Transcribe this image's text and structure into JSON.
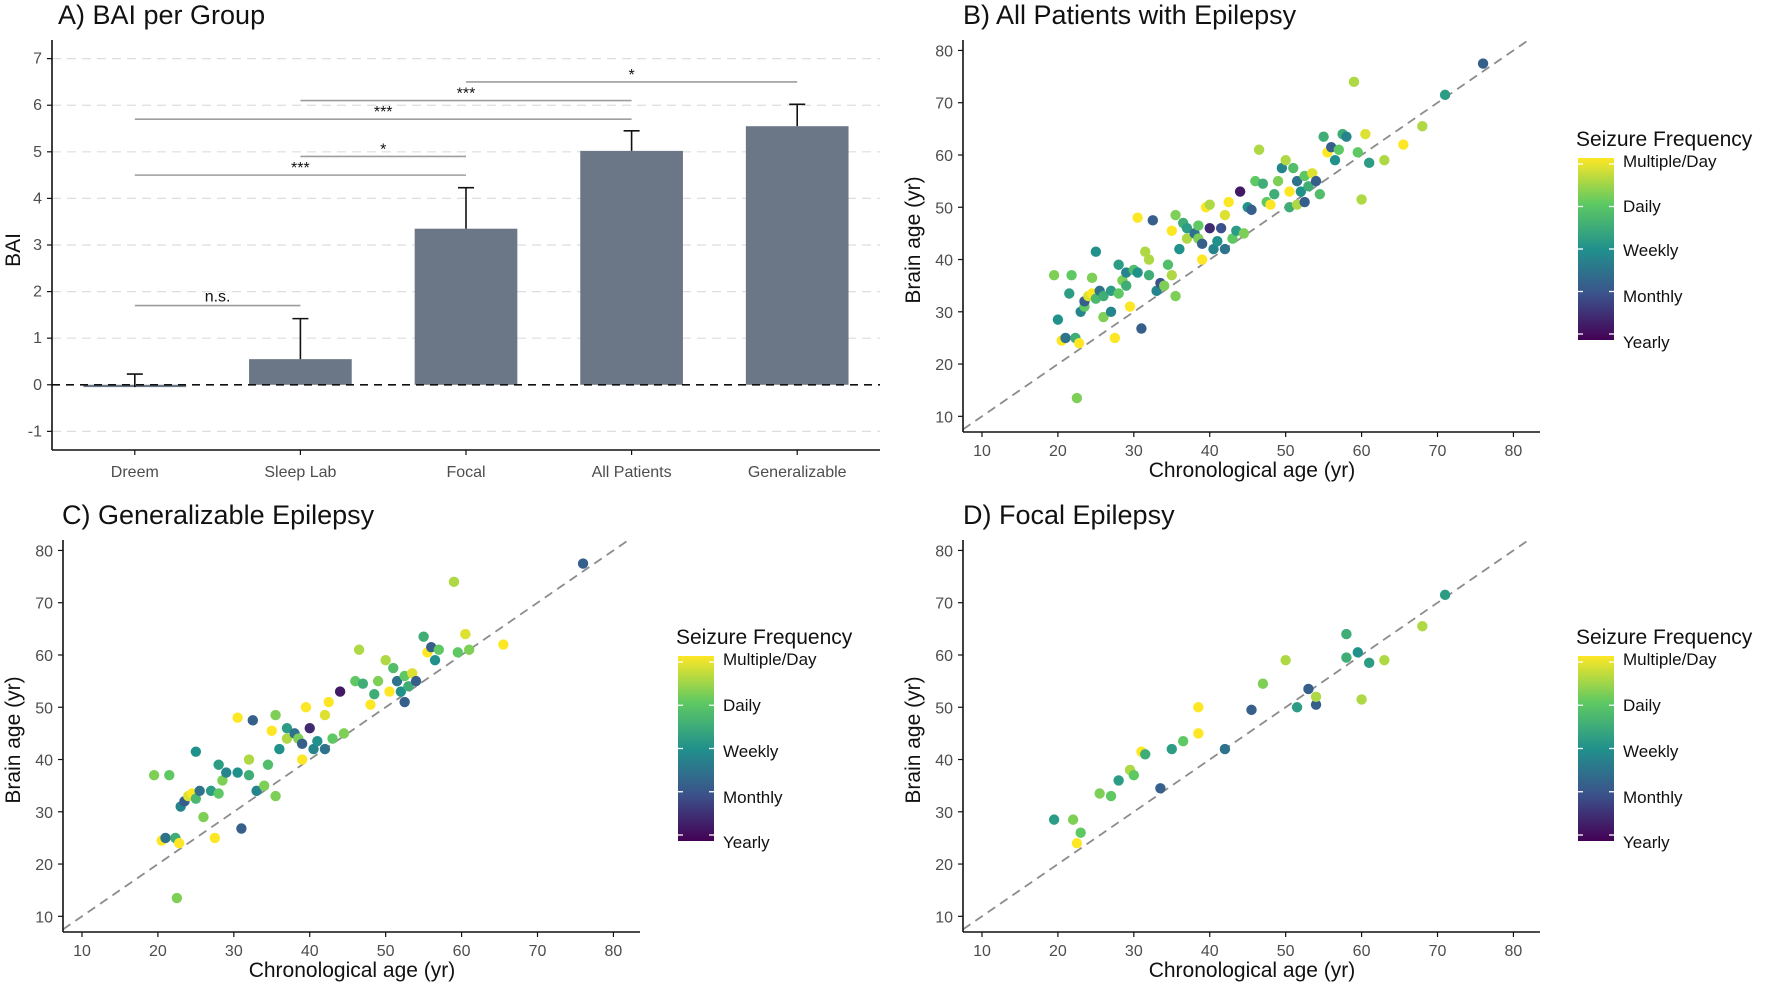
{
  "colors": {
    "bar": "#6b7786",
    "axis": "#111111",
    "grid": "#dedede",
    "diagonal": "#8c8c8c",
    "bracket": "#9e9e9e",
    "viridis": [
      "#440154",
      "#3b528b",
      "#21918c",
      "#5ec962",
      "#fde725"
    ]
  },
  "chart_data": [
    {
      "panel": "A",
      "type": "bar",
      "title": "A) BAI per Group",
      "xlabel": "",
      "ylabel": "BAI",
      "ylim": [
        -1.4,
        7.4
      ],
      "yticks": [
        -1,
        0,
        1,
        2,
        3,
        4,
        5,
        6,
        7
      ],
      "categories": [
        "Dreem",
        "Sleep Lab",
        "Focal",
        "All Patients",
        "Generalizable"
      ],
      "values": [
        -0.05,
        0.55,
        3.35,
        5.02,
        5.55
      ],
      "errors": [
        0.28,
        0.87,
        0.88,
        0.43,
        0.47
      ],
      "reference_line": 0,
      "grid": "horizontal dashed",
      "comparisons": [
        {
          "from": "Dreem",
          "to": "Sleep Lab",
          "y": 1.7,
          "label": "n.s."
        },
        {
          "from": "Dreem",
          "to": "Focal",
          "y": 4.5,
          "label": "***"
        },
        {
          "from": "Sleep Lab",
          "to": "Focal",
          "y": 4.9,
          "label": "*"
        },
        {
          "from": "Dreem",
          "to": "All Patients",
          "y": 5.7,
          "label": "***"
        },
        {
          "from": "Sleep Lab",
          "to": "All Patients",
          "y": 6.1,
          "label": "***"
        },
        {
          "from": "Focal",
          "to": "Generalizable",
          "y": 6.5,
          "label": "*"
        }
      ]
    },
    {
      "panel": "B",
      "type": "scatter",
      "title": "B) All Patients with Epilepsy",
      "xlabel": "Chronological age (yr)",
      "ylabel": "Brain age (yr)",
      "xlim": [
        7.5,
        83.5
      ],
      "ylim": [
        7,
        82
      ],
      "xticks": [
        10,
        20,
        30,
        40,
        50,
        60,
        70,
        80
      ],
      "yticks": [
        10,
        20,
        30,
        40,
        50,
        60,
        70,
        80
      ],
      "identity_line": true,
      "legend": {
        "title": "Seizure Frequency",
        "labels": [
          "Multiple/Day",
          "Daily",
          "Weekly",
          "Monthly",
          "Yearly"
        ],
        "position": "right"
      },
      "points": [
        [
          19.5,
          37,
          3.2
        ],
        [
          20,
          28.5,
          2
        ],
        [
          20.5,
          24.5,
          4
        ],
        [
          21,
          25,
          1.5
        ],
        [
          21.5,
          33.5,
          2.2
        ],
        [
          21.8,
          37,
          3
        ],
        [
          22.3,
          25,
          2.5
        ],
        [
          22.5,
          13.5,
          3.2
        ],
        [
          22.8,
          24,
          4
        ],
        [
          23,
          30,
          1.8
        ],
        [
          23.5,
          31,
          3
        ],
        [
          23.5,
          32,
          1.2
        ],
        [
          24,
          33,
          3.8
        ],
        [
          24.5,
          33.5,
          4
        ],
        [
          24.5,
          36.5,
          3.2
        ],
        [
          25,
          32.5,
          2.7
        ],
        [
          25,
          41.5,
          2
        ],
        [
          25.5,
          34,
          1.5
        ],
        [
          26,
          33,
          2.5
        ],
        [
          26,
          29,
          3.2
        ],
        [
          27,
          34,
          2.2
        ],
        [
          27,
          30,
          1.8
        ],
        [
          27.5,
          25,
          4
        ],
        [
          28,
          33.5,
          3
        ],
        [
          28,
          39,
          2.2
        ],
        [
          28.5,
          36,
          3.2
        ],
        [
          29,
          35,
          2.5
        ],
        [
          29,
          37.5,
          1.8
        ],
        [
          29.5,
          31,
          4
        ],
        [
          30,
          38,
          2.8
        ],
        [
          30.5,
          37.5,
          2
        ],
        [
          30.5,
          48,
          4
        ],
        [
          31,
          26.8,
          1.2
        ],
        [
          31.5,
          41.5,
          3.5
        ],
        [
          32,
          37,
          2.5
        ],
        [
          32,
          40,
          3.5
        ],
        [
          32.5,
          47.5,
          1.2
        ],
        [
          33,
          34,
          1.8
        ],
        [
          33.5,
          35.5,
          1
        ],
        [
          34,
          35,
          3.2
        ],
        [
          34.5,
          39,
          2.8
        ],
        [
          35,
          37,
          3.5
        ],
        [
          35,
          45.5,
          4
        ],
        [
          35.5,
          33,
          3.2
        ],
        [
          35.5,
          48.5,
          3.2
        ],
        [
          36,
          42,
          2
        ],
        [
          36.5,
          47,
          2.5
        ],
        [
          37,
          44,
          3.5
        ],
        [
          37,
          46,
          2.2
        ],
        [
          38,
          45,
          1.5
        ],
        [
          38.5,
          46.5,
          3
        ],
        [
          38.5,
          44,
          3.2
        ],
        [
          39,
          40,
          4
        ],
        [
          39,
          43,
          1.2
        ],
        [
          39.5,
          50,
          4
        ],
        [
          40,
          46,
          0.5
        ],
        [
          40,
          50.5,
          3.5
        ],
        [
          40.5,
          42,
          1.8
        ],
        [
          41,
          43.5,
          2
        ],
        [
          41.5,
          46,
          1
        ],
        [
          42,
          48.5,
          3.8
        ],
        [
          42,
          42,
          1.5
        ],
        [
          42.5,
          51,
          4
        ],
        [
          43,
          44,
          3
        ],
        [
          43.5,
          45.5,
          2.2
        ],
        [
          44,
          53,
          0.3
        ],
        [
          44.5,
          45,
          3.2
        ],
        [
          45,
          50,
          2
        ],
        [
          45.5,
          49.5,
          1.2
        ],
        [
          46,
          55,
          3
        ],
        [
          46.5,
          61,
          3.5
        ],
        [
          47,
          54.5,
          2.5
        ],
        [
          47.5,
          51,
          3
        ],
        [
          48,
          50.5,
          4
        ],
        [
          48.5,
          52.5,
          2.5
        ],
        [
          49,
          55,
          3.2
        ],
        [
          49.5,
          57.5,
          1.8
        ],
        [
          50,
          59,
          3.5
        ],
        [
          50.5,
          50,
          2.5
        ],
        [
          50.5,
          53,
          4
        ],
        [
          51,
          57.5,
          2.8
        ],
        [
          51.5,
          55,
          1.5
        ],
        [
          51.5,
          50.5,
          3.5
        ],
        [
          52,
          53,
          2
        ],
        [
          52.5,
          56,
          3
        ],
        [
          52.5,
          51,
          1.2
        ],
        [
          53,
          54,
          2.5
        ],
        [
          53.5,
          56.5,
          3.8
        ],
        [
          54,
          55,
          1.2
        ],
        [
          54.5,
          52.5,
          2.8
        ],
        [
          55,
          63.5,
          2.5
        ],
        [
          55.5,
          60.5,
          4
        ],
        [
          56,
          61.5,
          1.2
        ],
        [
          56.5,
          59,
          2
        ],
        [
          57,
          61,
          3
        ],
        [
          57.5,
          64,
          2.5
        ],
        [
          58,
          63.5,
          1.8
        ],
        [
          59,
          74,
          3.5
        ],
        [
          59.5,
          60.5,
          3
        ],
        [
          60,
          51.5,
          3.5
        ],
        [
          60.5,
          64,
          3.8
        ],
        [
          61,
          58.5,
          2.2
        ],
        [
          63,
          59,
          3.5
        ],
        [
          65.5,
          62,
          4
        ],
        [
          68,
          65.5,
          3.5
        ],
        [
          71,
          71.5,
          2.2
        ],
        [
          76,
          77.5,
          1.2
        ]
      ]
    },
    {
      "panel": "C",
      "type": "scatter",
      "title": "C) Generalizable Epilepsy",
      "xlabel": "Chronological age (yr)",
      "ylabel": "Brain age (yr)",
      "xlim": [
        7.5,
        83.5
      ],
      "ylim": [
        7,
        82
      ],
      "xticks": [
        10,
        20,
        30,
        40,
        50,
        60,
        70,
        80
      ],
      "yticks": [
        10,
        20,
        30,
        40,
        50,
        60,
        70,
        80
      ],
      "identity_line": true,
      "legend": {
        "title": "Seizure Frequency",
        "labels": [
          "Multiple/Day",
          "Daily",
          "Weekly",
          "Monthly",
          "Yearly"
        ],
        "position": "right"
      },
      "points": [
        [
          19.5,
          37,
          3.2
        ],
        [
          20.5,
          24.5,
          4
        ],
        [
          21,
          25,
          1.5
        ],
        [
          21.5,
          37,
          3
        ],
        [
          22.3,
          25,
          2.5
        ],
        [
          22.5,
          13.5,
          3.2
        ],
        [
          22.8,
          24,
          4
        ],
        [
          23,
          31,
          1.8
        ],
        [
          23.5,
          32,
          1.2
        ],
        [
          24,
          33,
          3.8
        ],
        [
          24.5,
          33.5,
          4
        ],
        [
          25,
          32.5,
          2.7
        ],
        [
          25,
          41.5,
          2
        ],
        [
          25.5,
          34,
          1.5
        ],
        [
          26,
          29,
          3.2
        ],
        [
          27,
          34,
          2.2
        ],
        [
          27.5,
          25,
          4
        ],
        [
          28,
          33.5,
          3
        ],
        [
          28,
          39,
          2.2
        ],
        [
          28.5,
          36,
          3.2
        ],
        [
          29,
          37.5,
          1.8
        ],
        [
          30.5,
          37.5,
          2
        ],
        [
          30.5,
          48,
          4
        ],
        [
          31,
          26.8,
          1.2
        ],
        [
          32,
          37,
          2.5
        ],
        [
          32,
          40,
          3.5
        ],
        [
          32.5,
          47.5,
          1.2
        ],
        [
          33,
          34,
          1.8
        ],
        [
          34,
          35,
          3.2
        ],
        [
          34.5,
          39,
          2.8
        ],
        [
          35,
          45.5,
          4
        ],
        [
          35.5,
          33,
          3.2
        ],
        [
          35.5,
          48.5,
          3.2
        ],
        [
          36,
          42,
          2
        ],
        [
          37,
          44,
          3.5
        ],
        [
          37,
          46,
          2.2
        ],
        [
          38,
          45,
          1.5
        ],
        [
          38.5,
          44,
          3.2
        ],
        [
          39,
          40,
          4
        ],
        [
          39,
          43,
          1.2
        ],
        [
          39.5,
          50,
          4
        ],
        [
          40,
          46,
          0.5
        ],
        [
          40.5,
          42,
          1.8
        ],
        [
          41,
          43.5,
          2
        ],
        [
          42,
          48.5,
          3.8
        ],
        [
          42,
          42,
          1.5
        ],
        [
          42.5,
          51,
          4
        ],
        [
          43,
          44,
          3
        ],
        [
          44,
          53,
          0.3
        ],
        [
          44.5,
          45,
          3.2
        ],
        [
          46,
          55,
          3
        ],
        [
          46.5,
          61,
          3.5
        ],
        [
          47,
          54.5,
          2.5
        ],
        [
          48,
          50.5,
          4
        ],
        [
          48.5,
          52.5,
          2.5
        ],
        [
          49,
          55,
          3.2
        ],
        [
          50,
          59,
          3.5
        ],
        [
          50.5,
          53,
          4
        ],
        [
          51,
          57.5,
          2.8
        ],
        [
          51.5,
          55,
          1.5
        ],
        [
          52,
          53,
          2
        ],
        [
          52.5,
          56,
          3
        ],
        [
          52.5,
          51,
          1.2
        ],
        [
          53,
          54,
          2.5
        ],
        [
          53.5,
          56.5,
          3.8
        ],
        [
          54,
          55,
          1.2
        ],
        [
          55,
          63.5,
          2.5
        ],
        [
          55.5,
          60.5,
          4
        ],
        [
          56,
          61.5,
          1.2
        ],
        [
          56.5,
          59,
          2
        ],
        [
          57,
          61,
          3
        ],
        [
          59,
          74,
          3.5
        ],
        [
          59.5,
          60.5,
          3
        ],
        [
          60.5,
          64,
          3.8
        ],
        [
          61,
          61,
          3.2
        ],
        [
          65.5,
          62,
          4
        ],
        [
          76,
          77.5,
          1.2
        ]
      ]
    },
    {
      "panel": "D",
      "type": "scatter",
      "title": "D) Focal Epilepsy",
      "xlabel": "Chronological age (yr)",
      "ylabel": "Brain age (yr)",
      "xlim": [
        7.5,
        83.5
      ],
      "ylim": [
        7,
        82
      ],
      "xticks": [
        10,
        20,
        30,
        40,
        50,
        60,
        70,
        80
      ],
      "yticks": [
        10,
        20,
        30,
        40,
        50,
        60,
        70,
        80
      ],
      "identity_line": true,
      "legend": {
        "title": "Seizure Frequency",
        "labels": [
          "Multiple/Day",
          "Daily",
          "Weekly",
          "Monthly",
          "Yearly"
        ],
        "position": "right"
      },
      "points": [
        [
          19.5,
          28.5,
          2.2
        ],
        [
          22,
          28.5,
          3.2
        ],
        [
          22.5,
          24,
          4
        ],
        [
          23,
          26,
          3
        ],
        [
          25.5,
          33.5,
          3.2
        ],
        [
          27,
          33,
          3
        ],
        [
          28,
          36,
          2.2
        ],
        [
          29.5,
          38,
          3.5
        ],
        [
          30,
          37,
          3
        ],
        [
          31,
          41.5,
          4
        ],
        [
          31.5,
          41,
          2.5
        ],
        [
          33.5,
          34.5,
          1.2
        ],
        [
          35,
          42,
          2.2
        ],
        [
          36.5,
          43.5,
          3
        ],
        [
          38.5,
          50,
          4
        ],
        [
          38.5,
          45,
          4
        ],
        [
          42,
          42,
          1.5
        ],
        [
          45.5,
          49.5,
          1.2
        ],
        [
          47,
          54.5,
          3.2
        ],
        [
          50,
          59,
          3.5
        ],
        [
          51.5,
          50,
          2.2
        ],
        [
          53,
          53.5,
          1.2
        ],
        [
          54,
          50.5,
          1.2
        ],
        [
          54,
          52,
          3.5
        ],
        [
          58,
          64,
          2.5
        ],
        [
          58,
          59.5,
          2.5
        ],
        [
          59.5,
          60.5,
          2
        ],
        [
          60,
          51.5,
          3.5
        ],
        [
          61,
          58.5,
          2.2
        ],
        [
          63,
          59,
          3.5
        ],
        [
          68,
          65.5,
          3.5
        ],
        [
          71,
          71.5,
          2.2
        ]
      ]
    }
  ]
}
